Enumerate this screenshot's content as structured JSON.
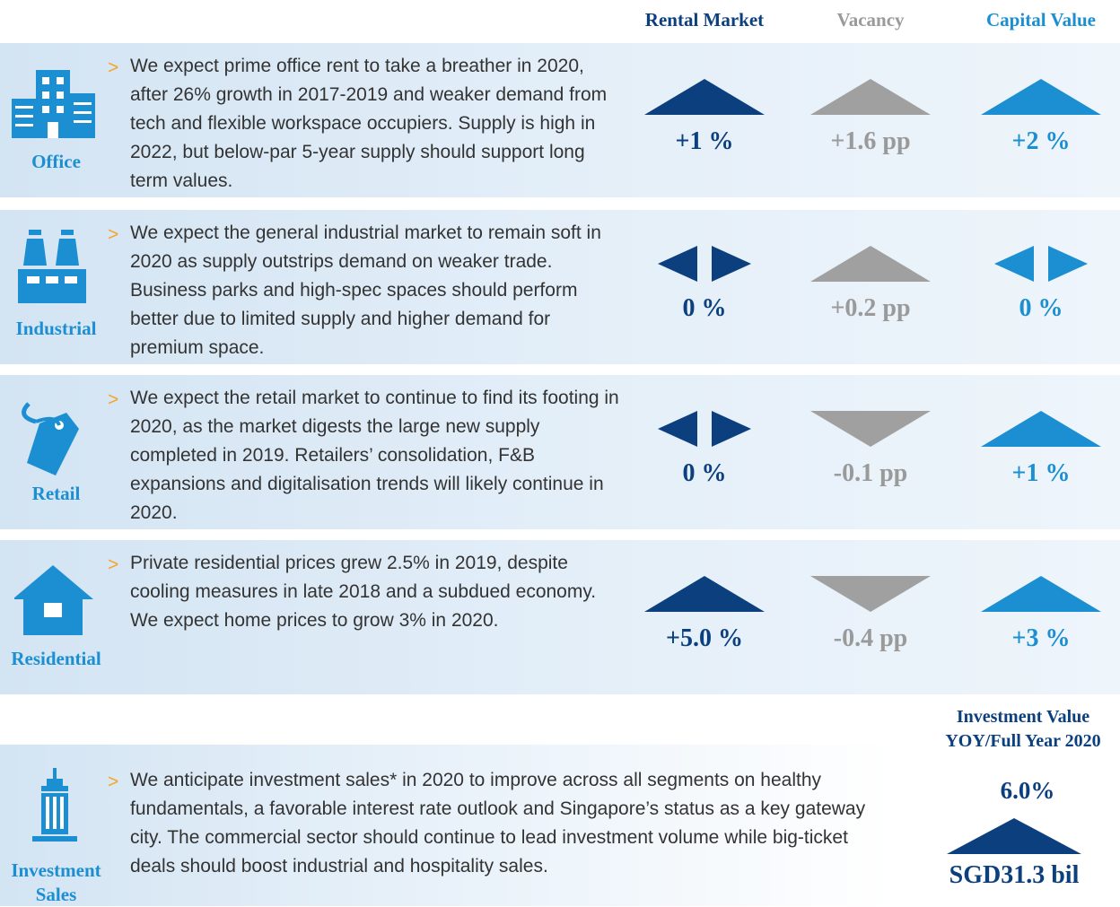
{
  "headers": [
    "Rental Market",
    "Vacancy",
    "Capital Value"
  ],
  "sectors": [
    {
      "label": "Office",
      "text": "We expect prime office rent to take a breather in 2020, after 26% growth in 2017-2019 and weaker demand from tech and flexible workspace occupiers. Supply is high in 2022, but below-par 5-year supply should support long term values.",
      "outlook": [
        {
          "value": "+1 %",
          "direction": "up"
        },
        {
          "value": "+1.6 pp",
          "direction": "up"
        },
        {
          "value": "+2 %",
          "direction": "up"
        }
      ]
    },
    {
      "label": "Industrial",
      "text": "We expect the general industrial market to remain soft in 2020 as supply outstrips demand on weaker trade. Business parks and high-spec spaces should perform better due to limited supply and higher demand for premium space.",
      "outlook": [
        {
          "value": "0 %",
          "direction": "flat"
        },
        {
          "value": "+0.2 pp",
          "direction": "up"
        },
        {
          "value": "0 %",
          "direction": "flat"
        }
      ]
    },
    {
      "label": "Retail",
      "text": "We expect the retail market to continue to find its footing in 2020, as the market digests the large new supply completed in 2019. Retailers’ consolidation, F&B expansions and digitalisation trends will likely continue in 2020.",
      "outlook": [
        {
          "value": "0 %",
          "direction": "flat"
        },
        {
          "value": "-0.1 pp",
          "direction": "down"
        },
        {
          "value": "+1 %",
          "direction": "up"
        }
      ]
    },
    {
      "label": "Residential",
      "text": "Private residential prices grew 2.5% in 2019, despite cooling measures in late 2018 and a subdued economy. We expect home prices to grow 3% in 2020.",
      "outlook": [
        {
          "value": "+5.0 %",
          "direction": "up"
        },
        {
          "value": "-0.4 pp",
          "direction": "down"
        },
        {
          "value": "+3 %",
          "direction": "up"
        }
      ]
    }
  ],
  "investment": {
    "header": [
      "Investment Value",
      "YOY/Full Year 2020"
    ],
    "label": [
      "Investment",
      "Sales"
    ],
    "text": "We anticipate investment sales* in 2020 to improve across all segments on healthy fundamentals, a favorable interest rate outlook and Singapore’s status as a key gateway city. The commercial sector should continue to lead investment volume while big-ticket deals should boost industrial and hospitality sales.",
    "change": "6.0%",
    "direction": "up",
    "amount": "SGD31.3 bil"
  }
}
